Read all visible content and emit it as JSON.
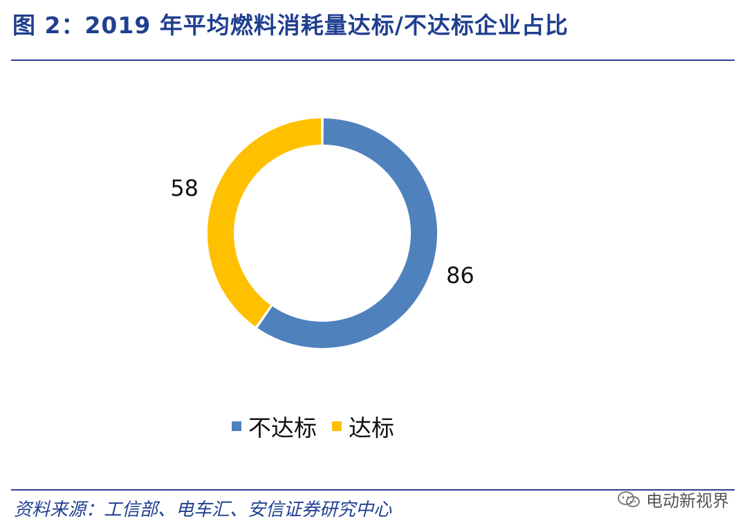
{
  "title": "图 2：2019 年平均燃料消耗量达标/不达标企业占比",
  "source": "资料来源：工信部、电车汇、安信证券研究中心",
  "watermark": {
    "text": "电动新视界",
    "icon": "wechat-icon"
  },
  "colors": {
    "title": "#1f3f8f",
    "rule": "#2a3f8f",
    "not_compliant": "#4f81bd",
    "compliant": "#ffc000"
  },
  "chart_data": {
    "type": "pie",
    "style": "donut",
    "series": [
      {
        "values": [
          86,
          58
        ]
      }
    ],
    "categories": [
      "不达标",
      "达标"
    ],
    "labels": [
      "86",
      "58"
    ],
    "legend": "bottom",
    "title": "",
    "xlabel": "",
    "ylabel": ""
  }
}
